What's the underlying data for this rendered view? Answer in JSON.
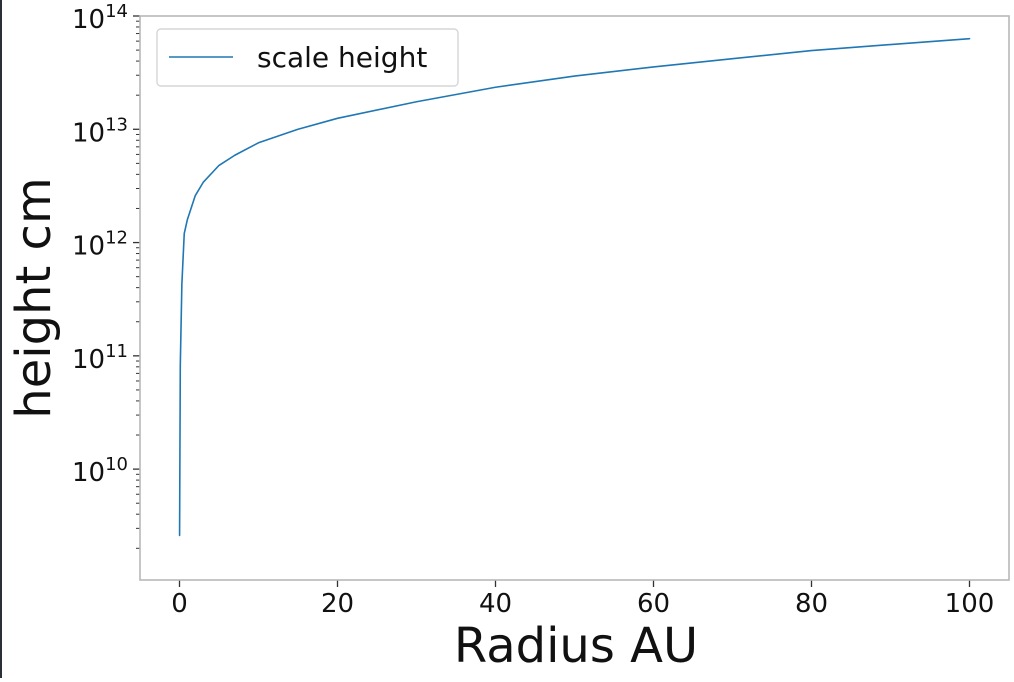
{
  "chart_data": {
    "type": "line",
    "title": "",
    "xlabel": "Radius AU",
    "ylabel": "height cm",
    "xscale": "linear",
    "yscale": "log",
    "xlim": [
      -5,
      105
    ],
    "ylim": [
      1050000000.0,
      100000000000000.0
    ],
    "xticks": [
      0,
      20,
      40,
      60,
      80,
      100
    ],
    "xtick_labels": [
      "0",
      "20",
      "40",
      "60",
      "80",
      "100"
    ],
    "yticks": [
      10000000000.0,
      100000000000.0,
      1000000000000.0,
      10000000000000.0,
      100000000000000.0
    ],
    "ytick_labels": [
      {
        "base": "10",
        "exp": "10"
      },
      {
        "base": "10",
        "exp": "11"
      },
      {
        "base": "10",
        "exp": "12"
      },
      {
        "base": "10",
        "exp": "13"
      },
      {
        "base": "10",
        "exp": "14"
      }
    ],
    "grid": false,
    "legend": {
      "position": "upper-left",
      "entries": [
        "scale height"
      ]
    },
    "series": [
      {
        "name": "scale height",
        "color": "#1f77b4",
        "x": [
          0.01,
          0.1,
          0.3,
          0.6,
          1,
          2,
          3,
          5,
          7,
          10,
          15,
          20,
          30,
          40,
          50,
          60,
          70,
          80,
          90,
          100
        ],
        "y": [
          2600000000.0,
          82000000000.0,
          430000000000.0,
          1200000000000.0,
          1600000000000.0,
          2600000000000.0,
          3400000000000.0,
          4800000000000.0,
          5900000000000.0,
          7600000000000.0,
          10000000000000.0,
          12500000000000.0,
          17500000000000.0,
          23500000000000.0,
          29500000000000.0,
          35500000000000.0,
          42000000000000.0,
          49500000000000.0,
          56000000000000.0,
          63000000000000.0
        ]
      }
    ]
  }
}
